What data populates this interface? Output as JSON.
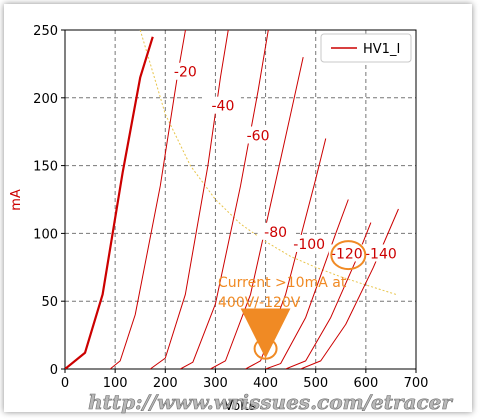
{
  "chart_data": {
    "type": "line",
    "xlabel": "Volts",
    "ylabel": "mA",
    "xlim": [
      0,
      700
    ],
    "ylim": [
      0,
      250
    ],
    "x_ticks": [
      0,
      100,
      200,
      300,
      400,
      500,
      600,
      700
    ],
    "y_ticks": [
      0,
      50,
      100,
      150,
      200,
      250
    ],
    "grid": true,
    "legend": {
      "position": "top-right",
      "entries": [
        "HV1_I"
      ]
    },
    "line_color": "#cc0000",
    "series": [
      {
        "name": "HV1_I",
        "bold": true,
        "points": [
          [
            0,
            0
          ],
          [
            40,
            12
          ],
          [
            75,
            55
          ],
          [
            115,
            145
          ],
          [
            150,
            215
          ],
          [
            175,
            245
          ]
        ]
      },
      {
        "points": [
          [
            90,
            0
          ],
          [
            110,
            6
          ],
          [
            140,
            40
          ],
          [
            190,
            135
          ],
          [
            225,
            218
          ],
          [
            245,
            260
          ]
        ]
      },
      {
        "points": [
          [
            170,
            0
          ],
          [
            200,
            8
          ],
          [
            240,
            55
          ],
          [
            285,
            150
          ],
          [
            310,
            215
          ],
          [
            330,
            260
          ]
        ]
      },
      {
        "points": [
          [
            230,
            0
          ],
          [
            255,
            5
          ],
          [
            300,
            48
          ],
          [
            350,
            135
          ],
          [
            385,
            205
          ],
          [
            410,
            260
          ]
        ]
      },
      {
        "points": [
          [
            290,
            0
          ],
          [
            320,
            6
          ],
          [
            370,
            55
          ],
          [
            420,
            138
          ],
          [
            450,
            188
          ],
          [
            475,
            230
          ]
        ]
      },
      {
        "points": [
          [
            360,
            0
          ],
          [
            390,
            6
          ],
          [
            440,
            55
          ],
          [
            500,
            140
          ],
          [
            520,
            170
          ]
        ]
      },
      {
        "points": [
          [
            400,
            0
          ],
          [
            430,
            4
          ],
          [
            480,
            38
          ],
          [
            540,
            100
          ],
          [
            565,
            125
          ]
        ]
      },
      {
        "points": [
          [
            440,
            0
          ],
          [
            480,
            6
          ],
          [
            530,
            38
          ],
          [
            580,
            80
          ],
          [
            610,
            108
          ]
        ]
      },
      {
        "points": [
          [
            470,
            0
          ],
          [
            510,
            6
          ],
          [
            560,
            33
          ],
          [
            615,
            75
          ],
          [
            665,
            118
          ]
        ]
      }
    ],
    "curve_labels": [
      {
        "text": "-20",
        "x": 240,
        "y": 217
      },
      {
        "text": "-40",
        "x": 315,
        "y": 192
      },
      {
        "text": "-60",
        "x": 385,
        "y": 170
      },
      {
        "text": "-80",
        "x": 420,
        "y": 99
      },
      {
        "text": "-100",
        "x": 487,
        "y": 90
      },
      {
        "text": "-120",
        "x": 562,
        "y": 83
      },
      {
        "text": "-140",
        "x": 630,
        "y": 83
      }
    ],
    "max_dissipation_curve": [
      [
        150,
        250
      ],
      [
        200,
        188
      ],
      [
        250,
        150
      ],
      [
        300,
        125
      ],
      [
        350,
        107
      ],
      [
        400,
        94
      ],
      [
        450,
        83
      ],
      [
        500,
        75
      ],
      [
        550,
        68
      ],
      [
        600,
        62
      ],
      [
        660,
        55
      ]
    ],
    "annotation": {
      "lines": [
        "Current >10mA at",
        "400V/-120V"
      ],
      "arrow_target": [
        400,
        16
      ],
      "color": "#f08a24"
    },
    "highlight_circles": [
      [
        400,
        15
      ],
      [
        565,
        84
      ]
    ]
  },
  "watermark": "http://www.wrissues.com/etracer"
}
